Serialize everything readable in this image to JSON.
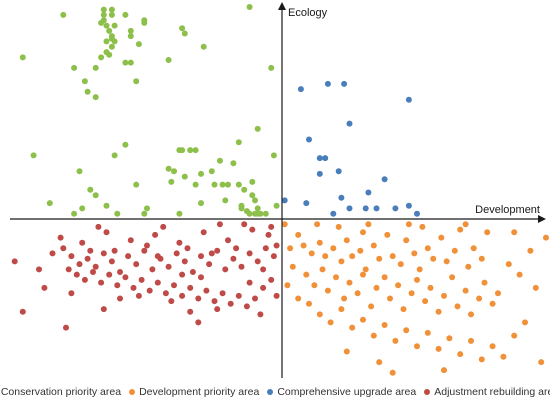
{
  "chart_data": {
    "type": "scatter",
    "title": "",
    "xlabel": "Development",
    "ylabel": "Ecology",
    "xlim": [
      -10,
      10
    ],
    "ylim": [
      -6,
      8
    ],
    "grid": false,
    "legend_position": "bottom",
    "series": [
      {
        "name": "Conservation priority area",
        "color": "#8dbf4b",
        "points": [
          [
            -9.6,
            6.1
          ],
          [
            -8.1,
            7.7
          ],
          [
            -6.7,
            7.4
          ],
          [
            -6.6,
            7.9
          ],
          [
            -6.6,
            7.5
          ],
          [
            -6.3,
            7.9
          ],
          [
            -6.2,
            7.3
          ],
          [
            -6.5,
            6.3
          ],
          [
            -6.3,
            6.5
          ],
          [
            -6.3,
            6.9
          ],
          [
            -6.4,
            6.2
          ],
          [
            -6.3,
            6.8
          ],
          [
            -6.4,
            7.1
          ],
          [
            -6.5,
            6.7
          ],
          [
            -6.2,
            6.7
          ],
          [
            -5.8,
            5.9
          ],
          [
            -5.6,
            5.9
          ],
          [
            -5.4,
            5.2
          ],
          [
            -5.1,
            7.5
          ],
          [
            -5.1,
            7.4
          ],
          [
            -5.3,
            6.6
          ],
          [
            -5.6,
            7.1
          ],
          [
            -5.8,
            7.7
          ],
          [
            -6.5,
            7.3
          ],
          [
            -6.7,
            6.1
          ],
          [
            -6.9,
            5.7
          ],
          [
            -7.3,
            5.2
          ],
          [
            -7.2,
            4.8
          ],
          [
            -6.9,
            4.6
          ],
          [
            -7.7,
            5.7
          ],
          [
            -6.3,
            7.7
          ],
          [
            -6.6,
            7.7
          ],
          [
            -5.6,
            6.9
          ],
          [
            -4.2,
            6.0
          ],
          [
            -3.7,
            7.2
          ],
          [
            -3.6,
            7.0
          ],
          [
            -2.9,
            6.5
          ],
          [
            -1.2,
            8.0
          ],
          [
            -0.4,
            5.7
          ],
          [
            -0.9,
            3.4
          ],
          [
            -0.3,
            2.4
          ],
          [
            -1.6,
            2.9
          ],
          [
            -1.8,
            2.1
          ],
          [
            -2.3,
            2.2
          ],
          [
            -2.6,
            1.8
          ],
          [
            -3.7,
            2.6
          ],
          [
            -3.8,
            2.6
          ],
          [
            -3.2,
            2.6
          ],
          [
            -3.4,
            2.6
          ],
          [
            -3.0,
            1.7
          ],
          [
            -3.2,
            1.3
          ],
          [
            -2.0,
            1.3
          ],
          [
            -2.5,
            1.3
          ],
          [
            -1.6,
            1.3
          ],
          [
            -1.1,
            1.4
          ],
          [
            -1.4,
            1.1
          ],
          [
            -1.1,
            0.9
          ],
          [
            -1.0,
            0.7
          ],
          [
            -1.5,
            0.5
          ],
          [
            -1.2,
            0.2
          ],
          [
            -0.6,
            0.2
          ],
          [
            -1.0,
            0.2
          ],
          [
            -1.5,
            0.4
          ],
          [
            -0.9,
            0.4
          ],
          [
            -0.8,
            0.2
          ],
          [
            -1.3,
            0.3
          ],
          [
            -4.0,
            1.8
          ],
          [
            -4.1,
            1.4
          ],
          [
            -5.0,
            0.4
          ],
          [
            -6.9,
            0.9
          ],
          [
            -7.7,
            0.2
          ],
          [
            -7.5,
            1.8
          ],
          [
            -7.1,
            1.1
          ],
          [
            -8.6,
            0.6
          ],
          [
            -9.2,
            2.4
          ],
          [
            -6.2,
            2.4
          ],
          [
            -5.4,
            1.3
          ],
          [
            -5.1,
            0.2
          ],
          [
            -6.1,
            0.2
          ],
          [
            -7.4,
            0.4
          ],
          [
            -5.8,
            2.8
          ],
          [
            -3.8,
            0.2
          ],
          [
            -3.6,
            1.6
          ],
          [
            -2.1,
            0.7
          ],
          [
            -0.9,
            0.2
          ],
          [
            -6.5,
            0.5
          ],
          [
            -4.2,
            1.9
          ],
          [
            -0.2,
            0.5
          ],
          [
            -2.2,
            1.3
          ],
          [
            -3.0,
            0.6
          ]
        ]
      },
      {
        "name": "Development priority area",
        "color": "#f0913a",
        "points": [
          [
            0.1,
            -0.2
          ],
          [
            0.6,
            -0.6
          ],
          [
            0.3,
            -1.1
          ],
          [
            0.8,
            -1.0
          ],
          [
            1.1,
            -1.3
          ],
          [
            1.4,
            -0.9
          ],
          [
            1.6,
            -1.4
          ],
          [
            1.9,
            -1.1
          ],
          [
            2.2,
            -1.6
          ],
          [
            2.4,
            -0.8
          ],
          [
            2.6,
            -1.4
          ],
          [
            2.9,
            -1.2
          ],
          [
            3.1,
            -1.9
          ],
          [
            3.4,
            -1.0
          ],
          [
            3.6,
            -1.5
          ],
          [
            3.9,
            -0.6
          ],
          [
            4.1,
            -1.4
          ],
          [
            4.4,
            -1.7
          ],
          [
            4.6,
            -0.8
          ],
          [
            4.9,
            -1.3
          ],
          [
            5.1,
            -1.9
          ],
          [
            5.4,
            -1.1
          ],
          [
            5.6,
            -1.5
          ],
          [
            5.9,
            -0.7
          ],
          [
            6.1,
            -1.6
          ],
          [
            6.4,
            -1.2
          ],
          [
            6.6,
            -0.4
          ],
          [
            6.9,
            -1.8
          ],
          [
            7.1,
            -1.1
          ],
          [
            7.4,
            -1.5
          ],
          [
            0.4,
            -1.8
          ],
          [
            0.9,
            -2.1
          ],
          [
            1.2,
            -2.5
          ],
          [
            1.5,
            -1.9
          ],
          [
            1.7,
            -2.7
          ],
          [
            2.0,
            -2.2
          ],
          [
            2.3,
            -3.0
          ],
          [
            2.5,
            -2.4
          ],
          [
            2.8,
            -2.8
          ],
          [
            3.0,
            -2.1
          ],
          [
            3.3,
            -3.3
          ],
          [
            3.5,
            -2.6
          ],
          [
            3.8,
            -2.2
          ],
          [
            4.0,
            -3.0
          ],
          [
            4.3,
            -2.5
          ],
          [
            4.5,
            -3.4
          ],
          [
            4.8,
            -2.8
          ],
          [
            5.0,
            -2.3
          ],
          [
            5.3,
            -3.1
          ],
          [
            5.5,
            -2.6
          ],
          [
            5.8,
            -3.5
          ],
          [
            6.0,
            -2.9
          ],
          [
            6.3,
            -2.2
          ],
          [
            6.5,
            -3.3
          ],
          [
            6.8,
            -2.7
          ],
          [
            7.0,
            -3.6
          ],
          [
            7.3,
            -3.0
          ],
          [
            7.5,
            -2.4
          ],
          [
            7.8,
            -3.2
          ],
          [
            8.0,
            -2.8
          ],
          [
            1.0,
            -3.2
          ],
          [
            1.4,
            -3.6
          ],
          [
            1.8,
            -3.9
          ],
          [
            2.2,
            -3.4
          ],
          [
            2.6,
            -4.1
          ],
          [
            3.0,
            -3.8
          ],
          [
            3.4,
            -4.4
          ],
          [
            3.8,
            -4.0
          ],
          [
            4.2,
            -4.6
          ],
          [
            4.6,
            -4.2
          ],
          [
            5.0,
            -4.8
          ],
          [
            5.4,
            -4.3
          ],
          [
            5.8,
            -4.9
          ],
          [
            6.2,
            -4.5
          ],
          [
            6.6,
            -5.1
          ],
          [
            7.0,
            -4.6
          ],
          [
            7.4,
            -5.3
          ],
          [
            7.8,
            -4.8
          ],
          [
            8.2,
            -5.2
          ],
          [
            8.6,
            -4.4
          ],
          [
            9.0,
            -3.9
          ],
          [
            9.4,
            -2.6
          ],
          [
            8.8,
            -2.1
          ],
          [
            8.4,
            -1.7
          ],
          [
            9.2,
            -1.2
          ],
          [
            9.8,
            -0.7
          ],
          [
            8.6,
            -0.5
          ],
          [
            3.2,
            -0.2
          ],
          [
            2.1,
            -0.3
          ],
          [
            1.3,
            -0.2
          ],
          [
            5.2,
            -0.3
          ],
          [
            6.8,
            -0.2
          ],
          [
            0.2,
            -2.5
          ],
          [
            0.6,
            -3.0
          ],
          [
            2.4,
            -5.0
          ],
          [
            3.6,
            -5.4
          ],
          [
            4.1,
            -5.8
          ],
          [
            6.0,
            -5.7
          ],
          [
            9.6,
            -5.4
          ],
          [
            7.6,
            -0.5
          ],
          [
            3.0,
            -0.5
          ],
          [
            4.7,
            -0.2
          ]
        ]
      },
      {
        "name": "Comprehensive upgrade area",
        "color": "#4a7ebb",
        "points": [
          [
            0.7,
            4.9
          ],
          [
            1.7,
            5.1
          ],
          [
            2.3,
            5.1
          ],
          [
            2.5,
            3.6
          ],
          [
            1.0,
            3.0
          ],
          [
            1.4,
            2.3
          ],
          [
            1.6,
            2.3
          ],
          [
            1.4,
            1.7
          ],
          [
            2.1,
            1.8
          ],
          [
            3.8,
            1.5
          ],
          [
            4.7,
            4.5
          ],
          [
            3.2,
            1.0
          ],
          [
            2.5,
            0.4
          ],
          [
            3.1,
            0.4
          ],
          [
            4.2,
            0.4
          ],
          [
            4.7,
            0.5
          ],
          [
            5.0,
            0.2
          ],
          [
            3.5,
            0.4
          ],
          [
            0.9,
            0.6
          ],
          [
            0.1,
            0.7
          ],
          [
            1.9,
            0.2
          ],
          [
            2.2,
            0.8
          ]
        ]
      },
      {
        "name": "Adjustment rebuilding area",
        "color": "#be4b48",
        "points": [
          [
            -9.9,
            -1.6
          ],
          [
            -8.5,
            -1.3
          ],
          [
            -8.1,
            -1.1
          ],
          [
            -7.8,
            -1.4
          ],
          [
            -7.5,
            -1.7
          ],
          [
            -7.2,
            -1.5
          ],
          [
            -6.9,
            -1.8
          ],
          [
            -6.6,
            -1.3
          ],
          [
            -6.3,
            -1.6
          ],
          [
            -6.0,
            -2.0
          ],
          [
            -5.7,
            -1.4
          ],
          [
            -5.4,
            -1.7
          ],
          [
            -5.1,
            -1.2
          ],
          [
            -4.8,
            -1.9
          ],
          [
            -4.5,
            -1.5
          ],
          [
            -4.2,
            -1.8
          ],
          [
            -3.9,
            -1.3
          ],
          [
            -3.6,
            -1.6
          ],
          [
            -3.3,
            -2.0
          ],
          [
            -3.0,
            -1.4
          ],
          [
            -2.7,
            -1.7
          ],
          [
            -2.4,
            -1.2
          ],
          [
            -2.1,
            -1.9
          ],
          [
            -1.8,
            -1.5
          ],
          [
            -1.5,
            -1.8
          ],
          [
            -1.2,
            -1.3
          ],
          [
            -0.9,
            -1.6
          ],
          [
            -0.6,
            -1.1
          ],
          [
            -0.3,
            -1.4
          ],
          [
            -7.9,
            -1.9
          ],
          [
            -7.6,
            -2.1
          ],
          [
            -7.3,
            -2.3
          ],
          [
            -7.0,
            -2.0
          ],
          [
            -6.7,
            -2.4
          ],
          [
            -6.4,
            -2.1
          ],
          [
            -6.1,
            -2.5
          ],
          [
            -5.8,
            -2.2
          ],
          [
            -5.5,
            -2.6
          ],
          [
            -5.2,
            -2.3
          ],
          [
            -4.9,
            -2.7
          ],
          [
            -4.6,
            -2.4
          ],
          [
            -4.3,
            -2.8
          ],
          [
            -4.0,
            -2.5
          ],
          [
            -3.7,
            -2.9
          ],
          [
            -3.4,
            -2.6
          ],
          [
            -3.1,
            -3.0
          ],
          [
            -2.8,
            -2.7
          ],
          [
            -2.5,
            -3.1
          ],
          [
            -2.2,
            -2.8
          ],
          [
            -1.9,
            -3.2
          ],
          [
            -1.6,
            -2.9
          ],
          [
            -1.3,
            -3.3
          ],
          [
            -1.0,
            -3.0
          ],
          [
            -0.7,
            -2.6
          ],
          [
            -0.4,
            -2.3
          ],
          [
            -0.2,
            -1.0
          ],
          [
            -8.2,
            -0.7
          ],
          [
            -7.4,
            -0.9
          ],
          [
            -6.5,
            -0.5
          ],
          [
            -5.6,
            -0.8
          ],
          [
            -4.7,
            -0.6
          ],
          [
            -3.8,
            -0.9
          ],
          [
            -2.9,
            -0.5
          ],
          [
            -2.0,
            -0.8
          ],
          [
            -1.1,
            -0.4
          ],
          [
            -0.4,
            -0.3
          ],
          [
            -6.8,
            -0.3
          ],
          [
            -4.4,
            -0.3
          ],
          [
            -2.3,
            -0.2
          ],
          [
            -1.4,
            -0.2
          ],
          [
            -0.5,
            -0.6
          ],
          [
            -9.6,
            -3.5
          ],
          [
            -8.0,
            -4.1
          ],
          [
            -6.6,
            -3.4
          ],
          [
            -3.4,
            -3.5
          ],
          [
            -3.1,
            -3.9
          ],
          [
            -0.8,
            -3.6
          ],
          [
            -0.2,
            -2.9
          ],
          [
            -6.2,
            -1.2
          ],
          [
            -5.0,
            -1.0
          ],
          [
            -3.5,
            -1.1
          ],
          [
            -2.6,
            -1.3
          ],
          [
            -1.7,
            -1.1
          ],
          [
            -7.1,
            -1.2
          ],
          [
            -5.3,
            -2.9
          ],
          [
            -4.1,
            -3.1
          ],
          [
            -2.4,
            -3.4
          ],
          [
            -1.2,
            -2.4
          ],
          [
            -0.7,
            -1.9
          ],
          [
            -3.0,
            -2.2
          ],
          [
            -8.8,
            -2.6
          ],
          [
            -9.0,
            -1.9
          ],
          [
            -7.8,
            -2.8
          ],
          [
            -6.0,
            -3.0
          ],
          [
            -4.6,
            -1.4
          ],
          [
            -3.7,
            -2.1
          ]
        ]
      }
    ]
  }
}
